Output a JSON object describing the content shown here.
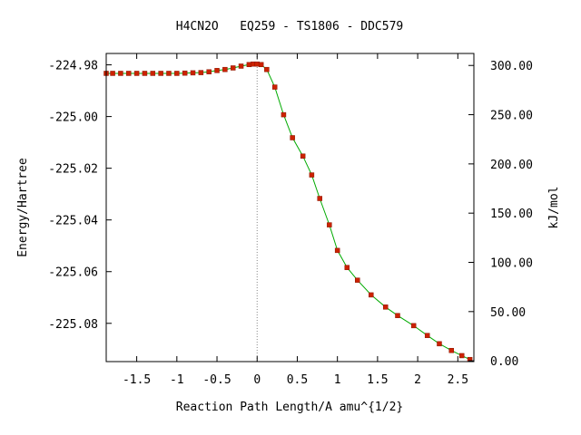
{
  "chart_data": {
    "type": "line",
    "title": "H4CN2O   EQ259 - TS1806 - DDC579",
    "xlabel": "Reaction Path Length/A amu^{1/2}",
    "ylabel": "Energy/Hartree",
    "y2label": "kJ/mol",
    "xlim": [
      -1.88,
      2.7
    ],
    "ylim": [
      -225.0948,
      -224.9756
    ],
    "x_ticks": [
      -1.5,
      -1,
      -0.5,
      0,
      0.5,
      1,
      1.5,
      2,
      2.5
    ],
    "x_tick_labels": [
      "-1.5",
      "-1",
      "-0.5",
      "0",
      "0.5",
      "1",
      "1.5",
      "2",
      "2.5"
    ],
    "y_ticks": [
      -224.98,
      -225.0,
      -225.02,
      -225.04,
      -225.06,
      -225.08
    ],
    "y_tick_labels": [
      "-224.98",
      "-225.00",
      "-225.02",
      "-225.04",
      "-225.06",
      "-225.08"
    ],
    "y2_ticks": [
      300,
      250,
      200,
      150,
      100,
      50,
      0
    ],
    "y2_tick_labels": [
      "300.00",
      "250.00",
      "200.00",
      "150.00",
      "100.00",
      "50.00",
      "0.00"
    ],
    "y2_zero_hartree": -225.0945,
    "ts_marker_x": 0,
    "series": [
      {
        "color": "#00aa00",
        "marker_color": "#cc2200",
        "x": [
          -1.88,
          -1.8,
          -1.7,
          -1.6,
          -1.5,
          -1.4,
          -1.3,
          -1.2,
          -1.1,
          -1.0,
          -0.9,
          -0.8,
          -0.7,
          -0.6,
          -0.5,
          -0.4,
          -0.3,
          -0.2,
          -0.1,
          -0.05,
          0.0,
          0.05,
          0.12,
          0.22,
          0.33,
          0.44,
          0.57,
          0.68,
          0.78,
          0.9,
          1.0,
          1.12,
          1.25,
          1.42,
          1.6,
          1.75,
          1.95,
          2.12,
          2.27,
          2.42,
          2.55,
          2.65
        ],
        "values": [
          -224.9833,
          -224.9833,
          -224.9833,
          -224.9833,
          -224.9833,
          -224.9833,
          -224.9833,
          -224.9833,
          -224.9833,
          -224.9833,
          -224.9832,
          -224.9831,
          -224.983,
          -224.9827,
          -224.9822,
          -224.9818,
          -224.9812,
          -224.9805,
          -224.9799,
          -224.9797,
          -224.9797,
          -224.9799,
          -224.9818,
          -224.9886,
          -224.9993,
          -225.0082,
          -225.0153,
          -225.0226,
          -225.0317,
          -225.0419,
          -225.0518,
          -225.0584,
          -225.0633,
          -225.069,
          -225.0737,
          -225.077,
          -225.0809,
          -225.0847,
          -225.0879,
          -225.0905,
          -225.0925,
          -225.094
        ]
      }
    ]
  }
}
